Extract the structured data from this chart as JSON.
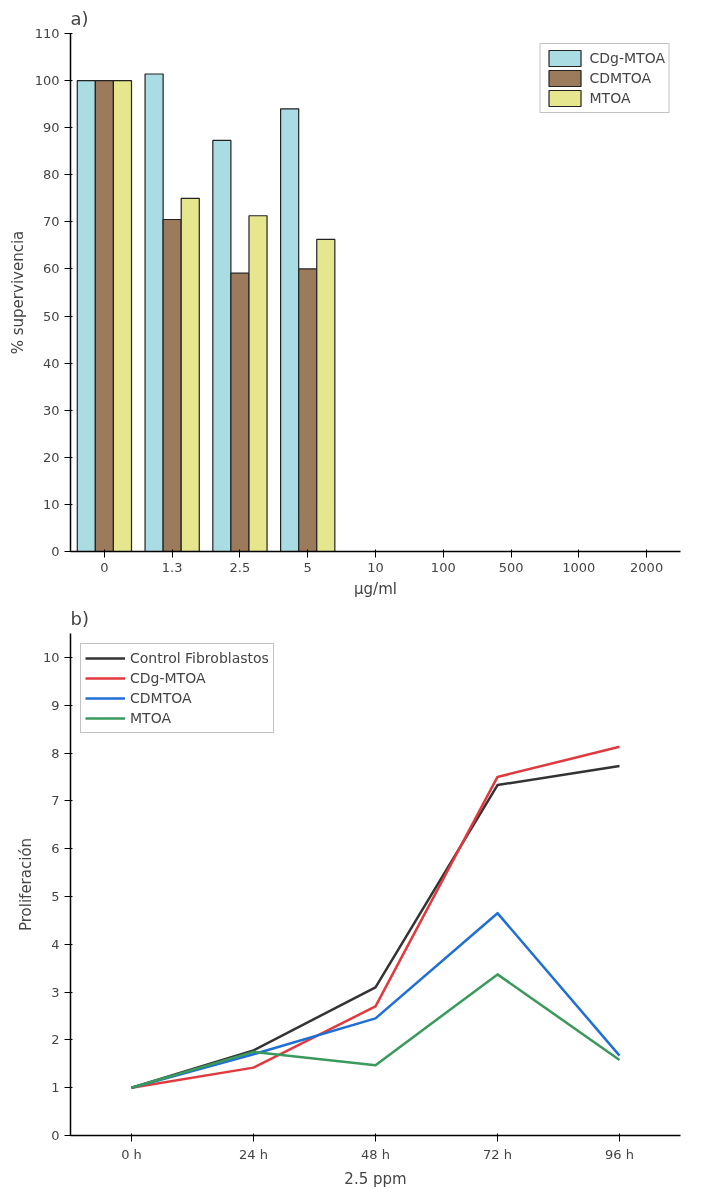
{
  "chart_data": [
    {
      "type": "bar",
      "title": "a)",
      "xlabel": "µg/ml",
      "ylabel": "% supervivencia",
      "categories": [
        "0",
        "1.3",
        "2.5",
        "5",
        "10",
        "100",
        "500",
        "1000",
        "2000"
      ],
      "series": [
        {
          "name": "CDg-MTOA",
          "color": "#a9dde3",
          "values": [
            100,
            101.4,
            87.3,
            94,
            null,
            null,
            null,
            null,
            null
          ]
        },
        {
          "name": "CDMTOA",
          "color": "#9c7a5c",
          "values": [
            100,
            70.5,
            59.1,
            60,
            null,
            null,
            null,
            null,
            null
          ]
        },
        {
          "name": "MTOA",
          "color": "#e6e68e",
          "values": [
            100,
            75,
            71.3,
            66.3,
            null,
            null,
            null,
            null,
            null
          ]
        }
      ],
      "ylim": [
        0,
        110
      ],
      "yticks": [
        0,
        10,
        20,
        30,
        40,
        50,
        60,
        70,
        80,
        90,
        100,
        110
      ],
      "grid": false,
      "legend": "top right"
    },
    {
      "type": "line",
      "title": "b)",
      "xlabel": "2.5 ppm",
      "ylabel": "Proliferación",
      "categories": [
        "0 h",
        "24 h",
        "48 h",
        "72 h",
        "96 h"
      ],
      "series": [
        {
          "name": "Control Fibroblastos",
          "color": "#333333",
          "values": [
            1,
            1.78,
            3.1,
            7.33,
            7.73
          ]
        },
        {
          "name": "CDg-MTOA",
          "color": "#e0393e",
          "values": [
            1,
            1.42,
            2.7,
            7.5,
            8.13
          ]
        },
        {
          "name": "CDMTOA",
          "color": "#1f6fd6",
          "values": [
            1,
            1.7,
            2.45,
            4.65,
            1.67
          ]
        },
        {
          "name": "MTOA",
          "color": "#3a9a5c",
          "values": [
            1,
            1.75,
            1.47,
            3.37,
            1.58
          ]
        }
      ],
      "ylim": [
        0,
        10.5
      ],
      "yticks": [
        0,
        1,
        2,
        3,
        4,
        5,
        6,
        7,
        8,
        9,
        10
      ],
      "grid": false,
      "legend": "top left"
    }
  ]
}
